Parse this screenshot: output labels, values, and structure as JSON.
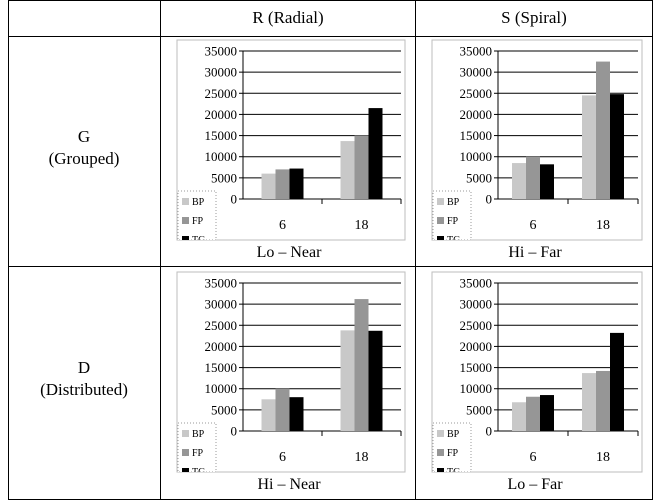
{
  "header": {
    "col1": "R (Radial)",
    "col2": "S (Spiral)"
  },
  "rows": {
    "g": {
      "code": "G",
      "name": "(Grouped)"
    },
    "d": {
      "code": "D",
      "name": "(Distributed)"
    }
  },
  "captions": {
    "g_r": "Lo – Near",
    "g_s": "Hi – Far",
    "d_r": "Hi – Near",
    "d_s": "Lo – Far"
  },
  "colors": {
    "BP": "#c8c8c8",
    "FP": "#969696",
    "TG": "#000000"
  },
  "chart_data": [
    {
      "type": "bar",
      "categories": [
        "6",
        "18"
      ],
      "series": [
        {
          "name": "BP",
          "values": [
            6000,
            13700
          ]
        },
        {
          "name": "FP",
          "values": [
            7000,
            15000
          ]
        },
        {
          "name": "TG",
          "values": [
            7200,
            21500
          ]
        }
      ],
      "ylim": [
        0,
        35000
      ],
      "yticks": [
        "0",
        "5000",
        "10000",
        "15000",
        "20000",
        "25000",
        "30000",
        "35000"
      ],
      "grid": true,
      "legend": "bottom-left"
    },
    {
      "type": "bar",
      "categories": [
        "6",
        "18"
      ],
      "series": [
        {
          "name": "BP",
          "values": [
            8500,
            24500
          ]
        },
        {
          "name": "FP",
          "values": [
            10000,
            32500
          ]
        },
        {
          "name": "TG",
          "values": [
            8200,
            24800
          ]
        }
      ],
      "ylim": [
        0,
        35000
      ],
      "yticks": [
        "0",
        "5000",
        "10000",
        "15000",
        "20000",
        "25000",
        "30000",
        "35000"
      ],
      "grid": true,
      "legend": "bottom-left"
    },
    {
      "type": "bar",
      "categories": [
        "6",
        "18"
      ],
      "series": [
        {
          "name": "BP",
          "values": [
            7500,
            23800
          ]
        },
        {
          "name": "FP",
          "values": [
            10000,
            31200
          ]
        },
        {
          "name": "TG",
          "values": [
            8000,
            23700
          ]
        }
      ],
      "ylim": [
        0,
        35000
      ],
      "yticks": [
        "0",
        "5000",
        "10000",
        "15000",
        "20000",
        "25000",
        "30000",
        "35000"
      ],
      "grid": true,
      "legend": "bottom-left"
    },
    {
      "type": "bar",
      "categories": [
        "6",
        "18"
      ],
      "series": [
        {
          "name": "BP",
          "values": [
            6800,
            13700
          ]
        },
        {
          "name": "FP",
          "values": [
            8100,
            14200
          ]
        },
        {
          "name": "TG",
          "values": [
            8500,
            23200
          ]
        }
      ],
      "ylim": [
        0,
        35000
      ],
      "yticks": [
        "0",
        "5000",
        "10000",
        "15000",
        "20000",
        "25000",
        "30000",
        "35000"
      ],
      "grid": true,
      "legend": "bottom-left"
    }
  ]
}
